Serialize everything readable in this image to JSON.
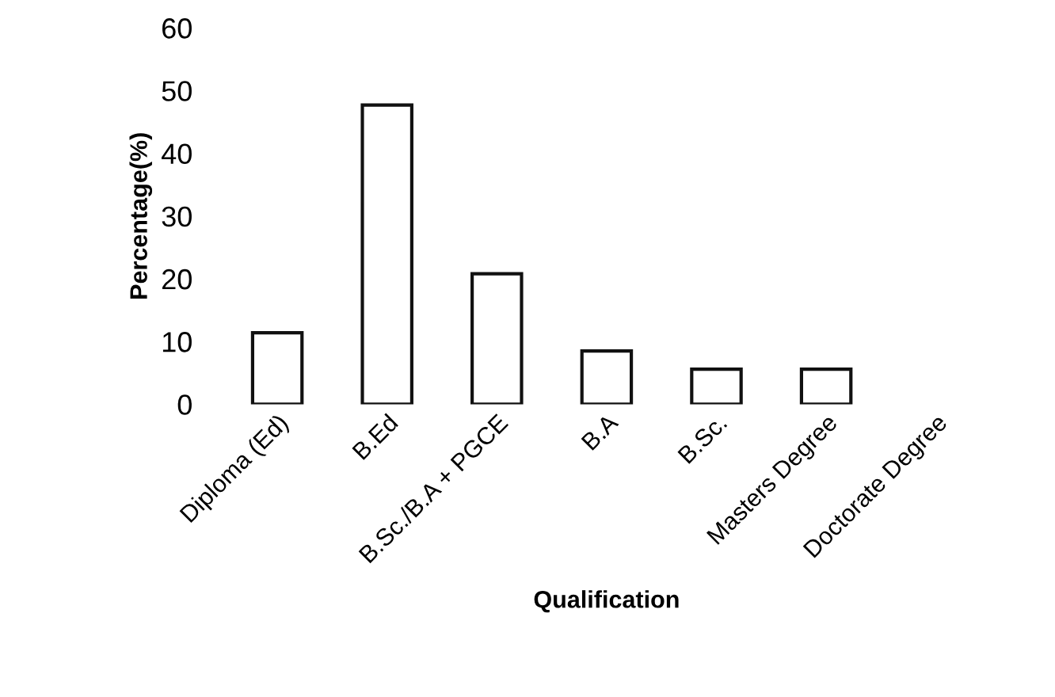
{
  "chart_data": {
    "type": "bar",
    "xlabel": "Qualification",
    "ylabel": "Percentage(%)",
    "categories": [
      "Diploma (Ed)",
      "B.Ed",
      "B.Sc./B.A + PGCE",
      "B.A",
      "B.Sc.",
      "Masters Degree",
      "Doctorate Degree"
    ],
    "values": [
      11.4,
      47.7,
      20.8,
      8.5,
      5.6,
      5.6,
      0
    ],
    "color": "#ffffff",
    "ylim": [
      0,
      60
    ],
    "yticks": [
      0,
      10,
      20,
      30,
      40,
      50,
      60
    ],
    "grid": false
  }
}
